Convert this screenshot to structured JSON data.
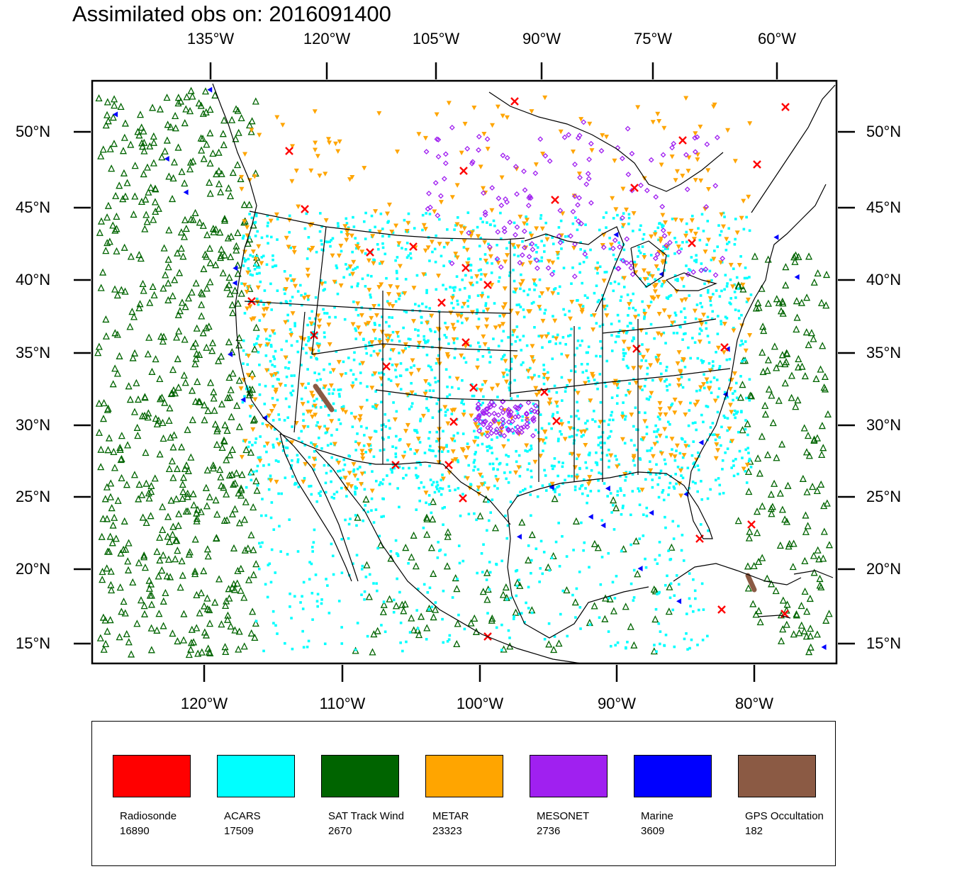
{
  "title": "Assimilated obs on: 2016091400",
  "top_axis_labels": [
    "135°W",
    "120°W",
    "105°W",
    "90°W",
    "75°W",
    "60°W"
  ],
  "bottom_axis_labels": [
    "120°W",
    "110°W",
    "100°W",
    "90°W",
    "80°W"
  ],
  "left_axis_labels": [
    "50°N",
    "45°N",
    "40°N",
    "35°N",
    "30°N",
    "25°N",
    "20°N",
    "15°N"
  ],
  "right_axis_labels": [
    "50°N",
    "45°N",
    "40°N",
    "35°N",
    "30°N",
    "25°N",
    "20°N",
    "15°N"
  ],
  "legend": [
    {
      "name": "Radiosonde",
      "count": "16890",
      "color": "#ff0000"
    },
    {
      "name": "ACARS",
      "count": "17509",
      "color": "#00ffff"
    },
    {
      "name": "SAT Track Wind",
      "count": "2670",
      "color": "#006400"
    },
    {
      "name": "METAR",
      "count": "23323",
      "color": "#ffa500"
    },
    {
      "name": "MESONET",
      "count": "2736",
      "color": "#a020f0"
    },
    {
      "name": "Marine",
      "count": "3609",
      "color": "#0000ff"
    },
    {
      "name": "GPS Occultation",
      "count": "182",
      "color": "#8b5a44"
    }
  ],
  "colors": {
    "frame": "#000000",
    "coast": "#000000",
    "background": "#ffffff"
  }
}
